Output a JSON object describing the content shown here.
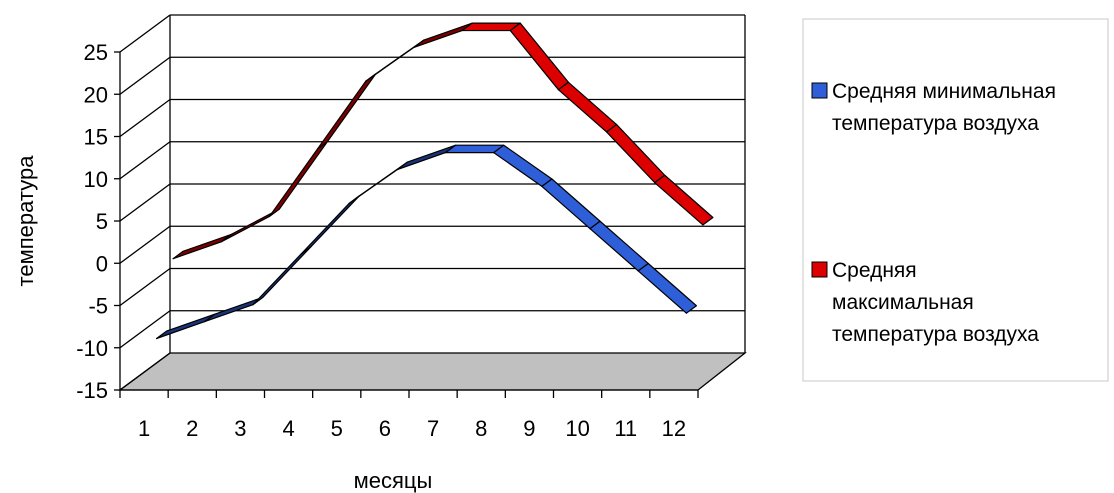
{
  "chart_data": {
    "type": "line",
    "title": "",
    "xlabel": "месяцы",
    "ylabel": "температура",
    "categories": [
      "1",
      "2",
      "3",
      "4",
      "5",
      "6",
      "7",
      "8",
      "9",
      "10",
      "11",
      "12"
    ],
    "ylim": [
      -15,
      25
    ],
    "yticks": [
      25,
      20,
      15,
      10,
      5,
      0,
      -5,
      -10,
      -15
    ],
    "grid": true,
    "legend_position": "right",
    "series": [
      {
        "name": "Средняя минимальная температура воздуха",
        "legend_lines": [
          "Средняя минимальная",
          "температура воздуха"
        ],
        "color": "#2e5fd8",
        "values": [
          -10,
          -8,
          -6,
          0,
          6,
          10,
          12,
          12,
          8,
          3,
          -2,
          -7
        ]
      },
      {
        "name": "Средняя максимальная температура воздуха",
        "legend_lines": [
          "Средняя",
          "максимальная",
          "температура воздуха"
        ],
        "color": "#dd0000",
        "values": [
          -2,
          0,
          3,
          11,
          19,
          23,
          25,
          25,
          18,
          13,
          7,
          2
        ]
      }
    ]
  }
}
